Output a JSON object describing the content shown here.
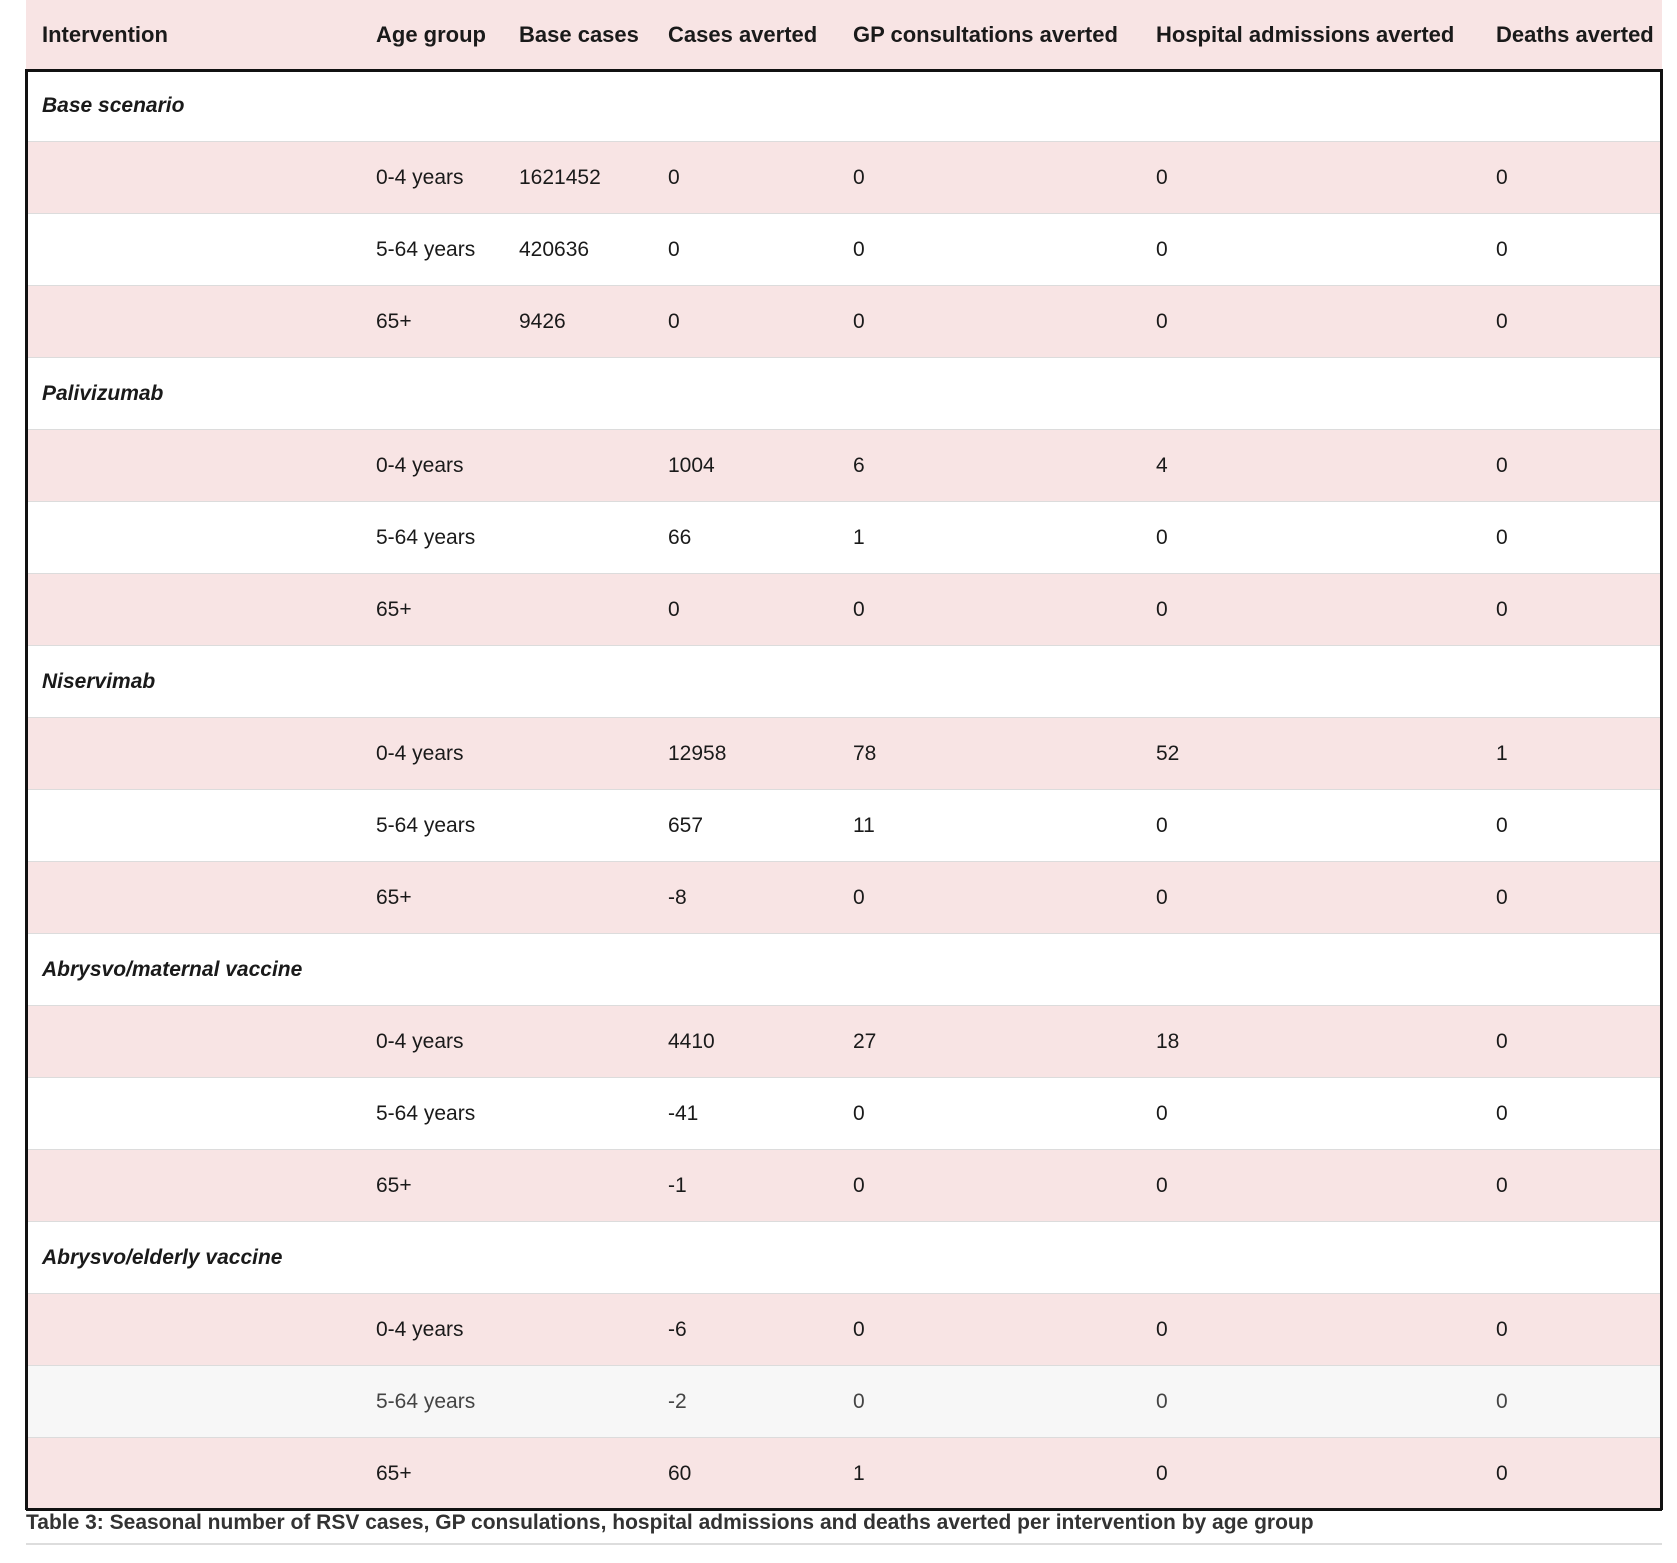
{
  "table": {
    "headers": [
      "Intervention",
      "Age group",
      "Base cases",
      "Cases averted",
      "GP consultations averted",
      "Hospital admissions averted",
      "Deaths averted"
    ],
    "groups": [
      {
        "name": "Base scenario",
        "rows": [
          {
            "age": "0-4 years",
            "base": "1621452",
            "cases": "0",
            "gp": "0",
            "hosp": "0",
            "deaths": "0"
          },
          {
            "age": "5-64 years",
            "base": "420636",
            "cases": "0",
            "gp": "0",
            "hosp": "0",
            "deaths": "0"
          },
          {
            "age": "65+",
            "base": "9426",
            "cases": "0",
            "gp": "0",
            "hosp": "0",
            "deaths": "0"
          }
        ]
      },
      {
        "name": "Palivizumab",
        "rows": [
          {
            "age": "0-4 years",
            "base": "",
            "cases": "1004",
            "gp": "6",
            "hosp": "4",
            "deaths": "0"
          },
          {
            "age": "5-64 years",
            "base": "",
            "cases": "66",
            "gp": "1",
            "hosp": "0",
            "deaths": "0"
          },
          {
            "age": "65+",
            "base": "",
            "cases": "0",
            "gp": "0",
            "hosp": "0",
            "deaths": "0"
          }
        ]
      },
      {
        "name": "Niservimab",
        "rows": [
          {
            "age": "0-4 years",
            "base": "",
            "cases": "12958",
            "gp": "78",
            "hosp": "52",
            "deaths": "1"
          },
          {
            "age": "5-64 years",
            "base": "",
            "cases": "657",
            "gp": "11",
            "hosp": "0",
            "deaths": "0"
          },
          {
            "age": "65+",
            "base": "",
            "cases": "-8",
            "gp": "0",
            "hosp": "0",
            "deaths": "0"
          }
        ]
      },
      {
        "name": "Abrysvo/maternal vaccine",
        "rows": [
          {
            "age": "0-4 years",
            "base": "",
            "cases": "4410",
            "gp": "27",
            "hosp": "18",
            "deaths": "0"
          },
          {
            "age": "5-64 years",
            "base": "",
            "cases": "-41",
            "gp": "0",
            "hosp": "0",
            "deaths": "0"
          },
          {
            "age": "65+",
            "base": "",
            "cases": "-1",
            "gp": "0",
            "hosp": "0",
            "deaths": "0"
          }
        ]
      },
      {
        "name": "Abrysvo/elderly vaccine",
        "rows": [
          {
            "age": "0-4 years",
            "base": "",
            "cases": "-6",
            "gp": "0",
            "hosp": "0",
            "deaths": "0"
          },
          {
            "age": "5-64 years",
            "base": "",
            "cases": "-2",
            "gp": "0",
            "hosp": "0",
            "deaths": "0"
          },
          {
            "age": "65+",
            "base": "",
            "cases": "60",
            "gp": "1",
            "hosp": "0",
            "deaths": "0"
          }
        ]
      }
    ]
  },
  "caption": "Table 3: Seasonal number of RSV cases, GP consulations, hospital admissions and deaths averted per intervention by age group"
}
